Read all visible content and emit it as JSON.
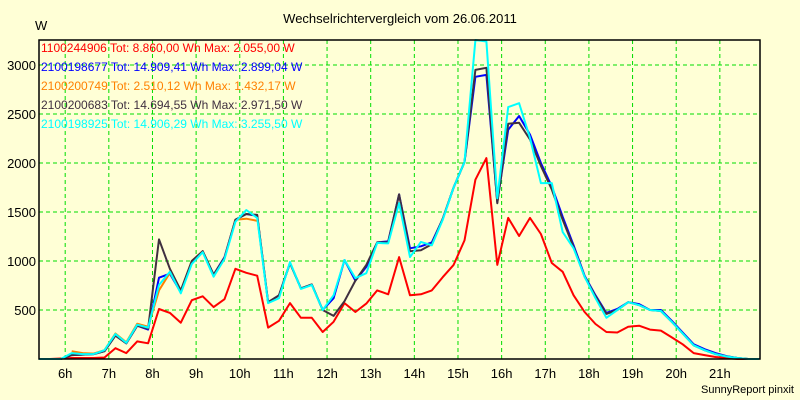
{
  "chart_data": {
    "type": "line",
    "title": "Wechselrichtervergleich vom 26.06.2011",
    "ylabel": "W",
    "xlabel": "",
    "footer": "SunnyReport pinxit",
    "xlim": [
      5.4,
      21.92
    ],
    "ylim": [
      0,
      3255
    ],
    "grid": true,
    "legend_placement": "top-left",
    "x_ticks": [
      6,
      7,
      8,
      9,
      10,
      11,
      12,
      13,
      14,
      15,
      16,
      17,
      18,
      19,
      20,
      21
    ],
    "x_tick_labels": [
      "6h",
      "7h",
      "8h",
      "9h",
      "10h",
      "11h",
      "12h",
      "13h",
      "14h",
      "15h",
      "16h",
      "17h",
      "18h",
      "19h",
      "20h",
      "21h"
    ],
    "y_ticks": [
      500,
      1000,
      1500,
      2000,
      2500,
      3000
    ],
    "y_tick_labels": [
      "500",
      "1000",
      "1500",
      "2000",
      "2500",
      "3000"
    ],
    "x_start": 5.4,
    "x_step_hours": 0.25,
    "series": [
      {
        "name": "1100244906",
        "legend": "1100244906 Tot: 8.860,00 Wh Max: 2.055,00 W",
        "color": "#ff0000",
        "values": [
          0,
          0,
          5,
          10,
          10,
          10,
          15,
          110,
          60,
          180,
          160,
          510,
          470,
          370,
          600,
          640,
          530,
          610,
          920,
          880,
          850,
          320,
          390,
          570,
          420,
          420,
          275,
          380,
          570,
          480,
          565,
          700,
          660,
          1040,
          650,
          660,
          700,
          835,
          960,
          1210,
          1830,
          2050,
          960,
          1440,
          1255,
          1440,
          1275,
          980,
          890,
          650,
          480,
          357,
          275,
          270,
          330,
          340,
          300,
          290,
          220,
          150,
          60,
          40,
          20,
          10,
          0,
          0,
          0
        ]
      },
      {
        "name": "2100198677",
        "legend": "2100198677 Tot: 14.909,41 Wh Max: 2.899,04 W",
        "color": "#0000ff",
        "values": [
          0,
          0,
          0,
          40,
          45,
          50,
          80,
          240,
          160,
          340,
          300,
          830,
          870,
          680,
          990,
          1100,
          860,
          1040,
          1420,
          1480,
          1460,
          580,
          650,
          980,
          720,
          760,
          500,
          620,
          1010,
          800,
          940,
          1190,
          1200,
          1680,
          1130,
          1150,
          1190,
          1430,
          1750,
          2010,
          2880,
          2899,
          1600,
          2340,
          2480,
          2290,
          2000,
          1760,
          1450,
          1160,
          850,
          650,
          470,
          510,
          580,
          560,
          500,
          500,
          390,
          270,
          150,
          100,
          60,
          30,
          10,
          0,
          0
        ]
      },
      {
        "name": "2100200749",
        "legend": "2100200749 Tot: 2.510,12 Wh Max: 1.432,17 W",
        "color": "#ff8000",
        "values": [
          null,
          null,
          null,
          80,
          60,
          55,
          90,
          260,
          170,
          360,
          330,
          700,
          880,
          690,
          1000,
          1100,
          850,
          1030,
          1420,
          1432,
          1410,
          null,
          null,
          null,
          null,
          null,
          null,
          null,
          null,
          null,
          null,
          null,
          null,
          null,
          null,
          null,
          null,
          null,
          null,
          null,
          null,
          null,
          null,
          null,
          null,
          null,
          null,
          null,
          null,
          null,
          null,
          null,
          null,
          null,
          null,
          null,
          null,
          null,
          null,
          null,
          null,
          null,
          null,
          null,
          null,
          null,
          null
        ]
      },
      {
        "name": "2100200683",
        "legend": "2100200683 Tot: 14.694,55 Wh Max: 2.971,50 W",
        "color": "#403040",
        "values": [
          0,
          0,
          0,
          40,
          45,
          50,
          80,
          240,
          160,
          340,
          310,
          1220,
          920,
          700,
          1000,
          1100,
          860,
          1030,
          1420,
          1480,
          1470,
          580,
          650,
          980,
          720,
          760,
          500,
          440,
          590,
          800,
          960,
          1190,
          1190,
          1680,
          1100,
          1110,
          1170,
          1430,
          1750,
          2010,
          2950,
          2971.5,
          1590,
          2400,
          2410,
          2240,
          1970,
          1730,
          1420,
          1140,
          840,
          640,
          460,
          500,
          580,
          550,
          500,
          490,
          380,
          260,
          140,
          90,
          50,
          25,
          10,
          0,
          0
        ]
      },
      {
        "name": "2100198925",
        "legend": "2100198925 Tot: 14.906,29 Wh Max: 3.255,50 W",
        "color": "#00ffff",
        "values": [
          0,
          0,
          0,
          60,
          50,
          50,
          90,
          255,
          165,
          350,
          320,
          755,
          890,
          670,
          970,
          1090,
          840,
          1020,
          1400,
          1520,
          1440,
          570,
          620,
          990,
          715,
          755,
          500,
          650,
          1010,
          825,
          875,
          1185,
          1180,
          1590,
          1040,
          1195,
          1160,
          1420,
          1750,
          2010,
          3255.5,
          3240,
          1640,
          2570,
          2610,
          2255,
          1795,
          1795,
          1295,
          1130,
          840,
          620,
          420,
          500,
          580,
          550,
          500,
          490,
          380,
          260,
          140,
          90,
          50,
          25,
          10,
          0,
          0
        ]
      }
    ]
  },
  "colors": {
    "background": "#ffffd6",
    "grid": "#00dd00",
    "axis": "#000000"
  }
}
